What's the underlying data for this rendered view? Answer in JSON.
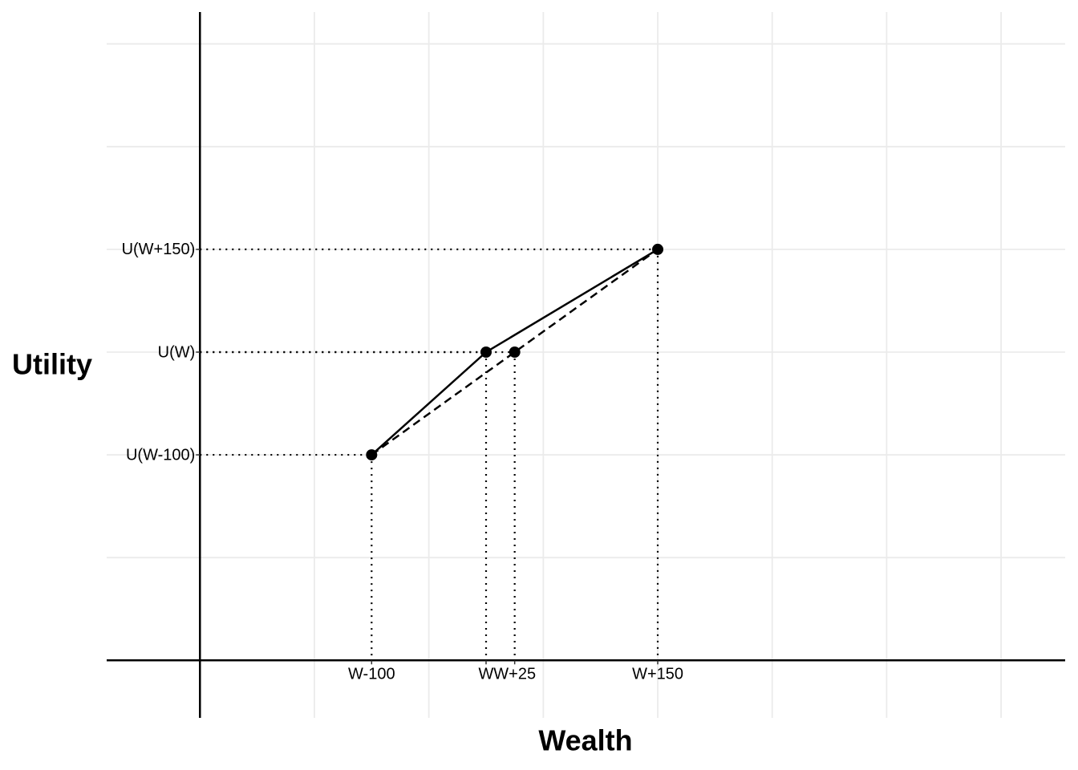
{
  "chart_data": {
    "type": "line",
    "x_label": "Wealth",
    "y_label": "Utility",
    "xlim": [
      -331.5,
      506
    ],
    "ylim": [
      -3.56,
      3.31
    ],
    "xticks": [
      {
        "value": -100,
        "label": "W-100"
      },
      {
        "value": 0,
        "label": "W"
      },
      {
        "value": 25,
        "label": "W+25"
      },
      {
        "value": 150,
        "label": "W+150"
      }
    ],
    "yticks": [
      {
        "value": -1,
        "label": "U(W-100)"
      },
      {
        "value": 0,
        "label": "U(W)"
      },
      {
        "value": 1,
        "label": "U(W+150)"
      }
    ],
    "x_grid": [
      -150,
      -50,
      50,
      150,
      250,
      350,
      450
    ],
    "y_grid": [
      -2,
      -1,
      0,
      1,
      2,
      3
    ],
    "x_axis_at": -3,
    "y_axis_at": -250,
    "grid": true,
    "color": "#000000",
    "curve": {
      "x": [
        -100,
        0,
        150
      ],
      "y": [
        -1,
        0,
        1
      ]
    },
    "chord": {
      "x": [
        -100,
        150
      ],
      "y": [
        -1,
        1
      ]
    },
    "points": {
      "x": [
        -100,
        0,
        25,
        150
      ],
      "y": [
        -1,
        0,
        0,
        1
      ]
    }
  }
}
